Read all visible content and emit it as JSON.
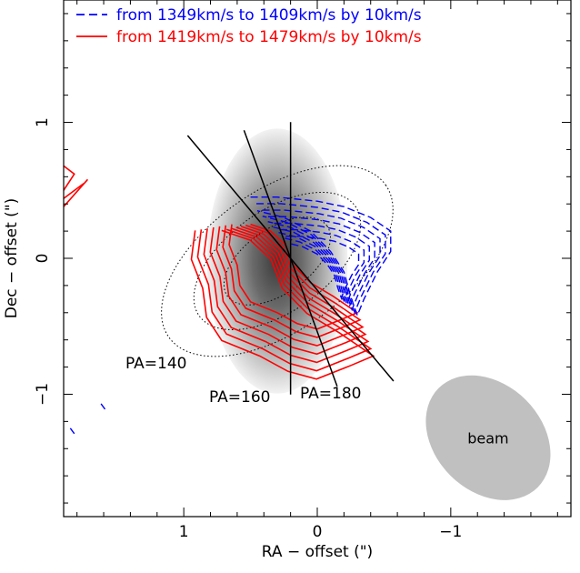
{
  "chart_data": {
    "type": "contour",
    "title": "",
    "xlabel": "RA − offset (\")",
    "ylabel": "Dec − offset (\")",
    "xlim": [
      1.9,
      -1.9
    ],
    "ylim": [
      -1.9,
      1.9
    ],
    "x_ticks": [
      1,
      0,
      -1
    ],
    "x_tick_labels": [
      "1",
      "0",
      "−1"
    ],
    "y_ticks": [
      1,
      0,
      -1
    ],
    "y_tick_labels": [
      "1",
      "0",
      "−1"
    ],
    "legend": {
      "placement": "top-left",
      "entries": [
        {
          "label": "from 1349km/s to 1409km/s by 10km/s",
          "color": "#0000ff",
          "style": "dashed"
        },
        {
          "label": "from 1419km/s to 1479km/s by 10km/s",
          "color": "#ff0000",
          "style": "solid"
        }
      ]
    },
    "colors": {
      "blue": "#0000ff",
      "red": "#ff0000",
      "continuum": "#555555",
      "beam": "#c0c0c0",
      "axes": "#000000"
    },
    "position_angle_lines": [
      {
        "label": "PA=140",
        "angle_deg": 140
      },
      {
        "label": "PA=160",
        "angle_deg": 160
      },
      {
        "label": "PA=180",
        "angle_deg": 180
      }
    ],
    "center": {
      "ra": 0.2,
      "dec": 0.0
    },
    "beam": {
      "label": "beam",
      "ra": -1.28,
      "dec": -1.32,
      "major": 1.05,
      "minor": 0.8,
      "pa_deg": 135
    },
    "continuum_ellipse": {
      "ra": 0.3,
      "dec": -0.02,
      "major": 1.6,
      "minor": 0.85,
      "pa_deg": 125
    },
    "grid": false
  }
}
